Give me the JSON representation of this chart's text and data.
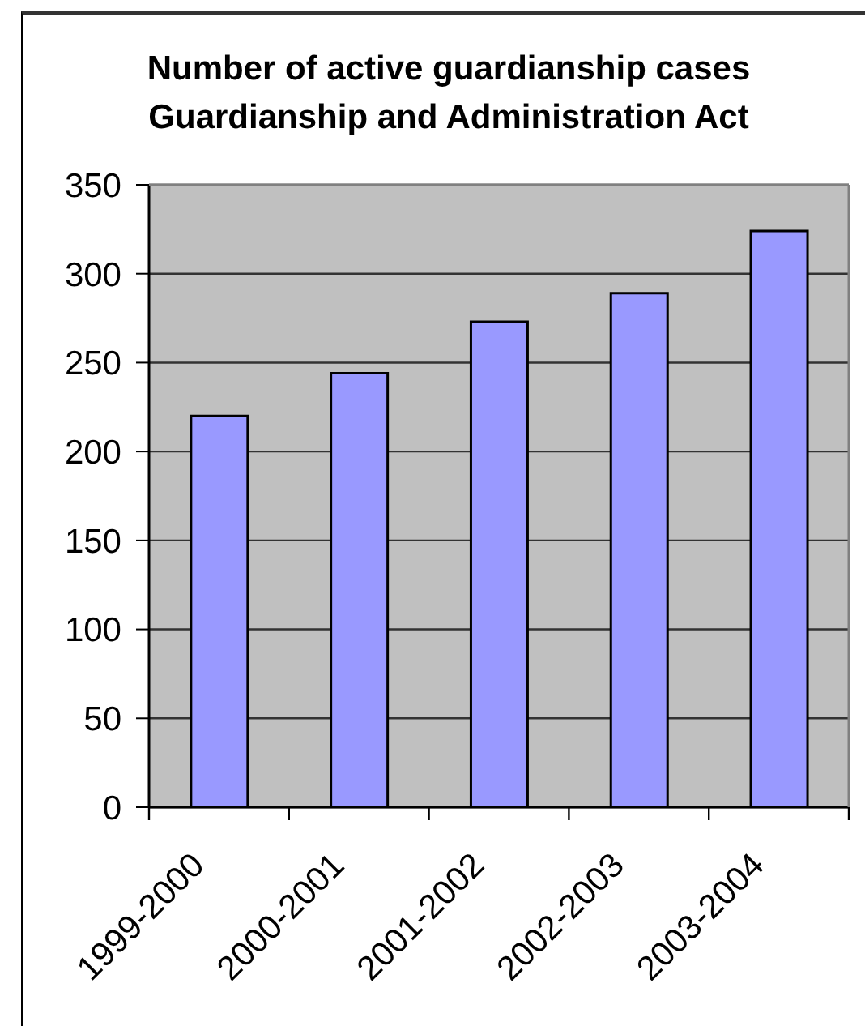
{
  "chart_data": {
    "type": "bar",
    "title": "Number of active guardianship cases\nGuardianship and Administration Act",
    "categories": [
      "1999-2000",
      "2000-2001",
      "2001-2002",
      "2002-2003",
      "2003-2004"
    ],
    "values": [
      220,
      244,
      273,
      289,
      324
    ],
    "color": "#9999ff",
    "ylim": [
      0,
      350
    ],
    "yticks": [
      0,
      50,
      100,
      150,
      200,
      250,
      300,
      350
    ],
    "grid": "y"
  }
}
